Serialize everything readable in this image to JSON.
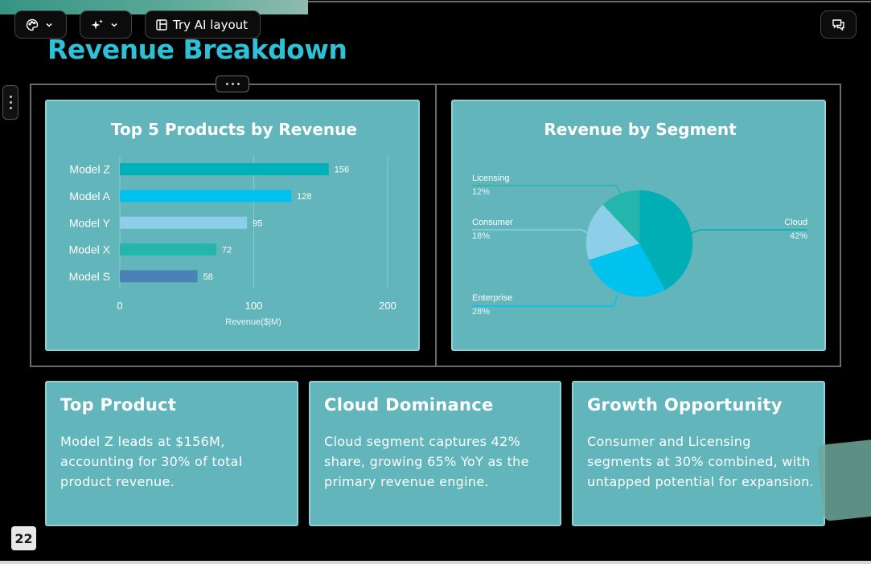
{
  "toolbar": {
    "theme_button_icon": "palette-icon",
    "ai_button_icon": "sparkle-icon",
    "try_ai_label": "Try AI layout",
    "try_ai_icon": "layout-icon",
    "comments_icon": "chat-icon"
  },
  "slide": {
    "title": "Revenue Breakdown",
    "page_number": "22"
  },
  "colors": {
    "title": "#2ec1d6",
    "card_bg": "#62b6bb",
    "card_border": "#8fd1d4"
  },
  "chart_data": [
    {
      "type": "bar",
      "orientation": "horizontal",
      "title": "Top 5 Products by Revenue",
      "categories": [
        "Model Z",
        "Model A",
        "Model Y",
        "Model X",
        "Model S"
      ],
      "values": [
        156,
        128,
        95,
        72,
        58
      ],
      "bar_colors": [
        "#00b0b8",
        "#00c2ee",
        "#8dcfe8",
        "#24b5ad",
        "#4a82b8"
      ],
      "data_labels": true,
      "xlabel": "Revenue($|M)",
      "xlim": [
        0,
        200
      ],
      "xticks": [
        0,
        100,
        200
      ],
      "grid": true
    },
    {
      "type": "pie",
      "title": "Revenue by Segment",
      "slices": [
        {
          "label": "Cloud",
          "value": 42,
          "value_label": "42%",
          "color": "#00aeb6"
        },
        {
          "label": "Enterprise",
          "value": 28,
          "value_label": "28%",
          "color": "#00c2ee"
        },
        {
          "label": "Consumer",
          "value": 18,
          "value_label": "18%",
          "color": "#8dcfe8"
        },
        {
          "label": "Licensing",
          "value": 12,
          "value_label": "12%",
          "color": "#24b5ad"
        }
      ]
    }
  ],
  "insights": [
    {
      "heading": "Top Product",
      "body": "Model Z leads at $156M, accounting for 30% of total product revenue."
    },
    {
      "heading": "Cloud Dominance",
      "body": "Cloud segment captures 42% share, growing 65% YoY as the primary revenue engine."
    },
    {
      "heading": "Growth Opportunity",
      "body": "Consumer and Licensing segments at 30% combined, with untapped potential for expansion."
    }
  ]
}
